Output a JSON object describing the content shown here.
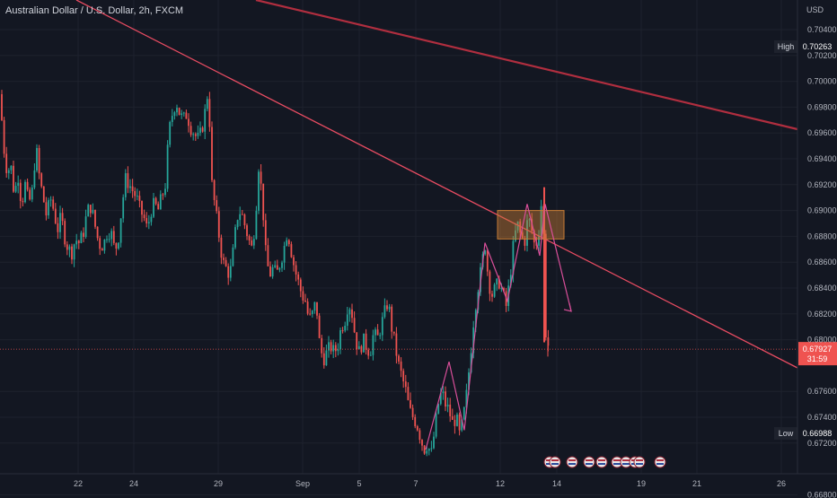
{
  "header": {
    "title": "Australian Dollar / U.S. Dollar, 2h, FXCM",
    "currency": "USD"
  },
  "colors": {
    "up": "#26a69a",
    "down": "#ef5350",
    "bg": "#131722",
    "grid": "#1e222d",
    "trend": "#e84c62",
    "trend_dark": "#b02e3f",
    "zone": "#c77d35"
  },
  "chart_data": {
    "type": "candlestick",
    "x_ticks": [
      "22",
      "24",
      "29",
      "Sep",
      "5",
      "7",
      "12",
      "14",
      "19",
      "21",
      "26"
    ],
    "y_ticks": [
      "0.70400",
      "0.70200",
      "0.70000",
      "0.69800",
      "0.69600",
      "0.69400",
      "0.69200",
      "0.69000",
      "0.68800",
      "0.68600",
      "0.68400",
      "0.68200",
      "0.68000",
      "0.67600",
      "0.67400",
      "0.67200",
      "0.66800"
    ],
    "ylim": [
      0.6665,
      0.7062
    ],
    "high": {
      "label": "High",
      "value": "0.70263"
    },
    "low": {
      "label": "Low",
      "value": "0.66988"
    },
    "last": {
      "value": "0.67927",
      "countdown": "31:59"
    },
    "annotations": [
      "Trendline 1",
      "Trendline 2",
      "Resistance zone",
      "Zigzag pattern",
      "Projection arrow"
    ],
    "ohlc_path": [
      [
        0,
        0.699
      ],
      [
        4,
        0.695
      ],
      [
        8,
        0.693
      ],
      [
        12,
        0.6935
      ],
      [
        16,
        0.6912
      ],
      [
        20,
        0.6928
      ],
      [
        24,
        0.6905
      ],
      [
        28,
        0.692
      ],
      [
        32,
        0.6905
      ],
      [
        36,
        0.6915
      ],
      [
        40,
        0.695
      ],
      [
        44,
        0.6925
      ],
      [
        48,
        0.691
      ],
      [
        52,
        0.6895
      ],
      [
        56,
        0.691
      ],
      [
        60,
        0.69
      ],
      [
        64,
        0.6885
      ],
      [
        68,
        0.6895
      ],
      [
        72,
        0.688
      ],
      [
        76,
        0.687
      ],
      [
        80,
        0.6868
      ],
      [
        84,
        0.6878
      ],
      [
        88,
        0.6875
      ],
      [
        92,
        0.688
      ],
      [
        96,
        0.6895
      ],
      [
        100,
        0.6905
      ],
      [
        104,
        0.6895
      ],
      [
        108,
        0.688
      ],
      [
        112,
        0.6872
      ],
      [
        116,
        0.6875
      ],
      [
        120,
        0.6885
      ],
      [
        124,
        0.6882
      ],
      [
        128,
        0.6868
      ],
      [
        132,
        0.688
      ],
      [
        136,
        0.6905
      ],
      [
        140,
        0.6925
      ],
      [
        144,
        0.692
      ],
      [
        148,
        0.6915
      ],
      [
        152,
        0.691
      ],
      [
        156,
        0.69
      ],
      [
        160,
        0.6895
      ],
      [
        164,
        0.6885
      ],
      [
        168,
        0.69
      ],
      [
        172,
        0.6905
      ],
      [
        176,
        0.69
      ],
      [
        180,
        0.691
      ],
      [
        184,
        0.692
      ],
      [
        188,
        0.696
      ],
      [
        192,
        0.6975
      ],
      [
        196,
        0.6985
      ],
      [
        200,
        0.6975
      ],
      [
        204,
        0.697
      ],
      [
        208,
        0.6975
      ],
      [
        212,
        0.6965
      ],
      [
        216,
        0.696
      ],
      [
        220,
        0.6955
      ],
      [
        224,
        0.696
      ],
      [
        228,
        0.6975
      ],
      [
        232,
        0.6995
      ],
      [
        236,
        0.692
      ],
      [
        240,
        0.69
      ],
      [
        244,
        0.688
      ],
      [
        248,
        0.686
      ],
      [
        252,
        0.6855
      ],
      [
        256,
        0.685
      ],
      [
        260,
        0.687
      ],
      [
        264,
        0.6895
      ],
      [
        268,
        0.69
      ],
      [
        272,
        0.689
      ],
      [
        276,
        0.688
      ],
      [
        280,
        0.687
      ],
      [
        284,
        0.689
      ],
      [
        288,
        0.6935
      ],
      [
        292,
        0.691
      ],
      [
        296,
        0.6865
      ],
      [
        300,
        0.685
      ],
      [
        304,
        0.6855
      ],
      [
        308,
        0.685
      ],
      [
        312,
        0.686
      ],
      [
        316,
        0.687
      ],
      [
        320,
        0.6885
      ],
      [
        324,
        0.687
      ],
      [
        328,
        0.6855
      ],
      [
        332,
        0.6845
      ],
      [
        336,
        0.6835
      ],
      [
        340,
        0.683
      ],
      [
        344,
        0.6815
      ],
      [
        348,
        0.682
      ],
      [
        352,
        0.683
      ],
      [
        356,
        0.6795
      ],
      [
        360,
        0.6785
      ],
      [
        364,
        0.679
      ],
      [
        368,
        0.6795
      ],
      [
        372,
        0.679
      ],
      [
        376,
        0.6795
      ],
      [
        380,
        0.681
      ],
      [
        384,
        0.6815
      ],
      [
        388,
        0.683
      ],
      [
        392,
        0.682
      ],
      [
        396,
        0.68
      ],
      [
        400,
        0.679
      ],
      [
        404,
        0.68
      ],
      [
        408,
        0.6795
      ],
      [
        412,
        0.679
      ],
      [
        416,
        0.6805
      ],
      [
        420,
        0.68
      ],
      [
        424,
        0.681
      ],
      [
        428,
        0.682
      ],
      [
        432,
        0.683
      ],
      [
        436,
        0.681
      ],
      [
        440,
        0.6795
      ],
      [
        444,
        0.678
      ],
      [
        448,
        0.677
      ],
      [
        452,
        0.676
      ],
      [
        456,
        0.6745
      ],
      [
        460,
        0.674
      ],
      [
        464,
        0.6735
      ],
      [
        468,
        0.6725
      ],
      [
        472,
        0.6715
      ],
      [
        476,
        0.672
      ],
      [
        480,
        0.671
      ],
      [
        484,
        0.673
      ],
      [
        488,
        0.675
      ],
      [
        492,
        0.676
      ],
      [
        496,
        0.675
      ],
      [
        500,
        0.6745
      ],
      [
        504,
        0.6735
      ],
      [
        508,
        0.674
      ],
      [
        512,
        0.6725
      ],
      [
        516,
        0.674
      ],
      [
        520,
        0.676
      ],
      [
        524,
        0.679
      ],
      [
        528,
        0.682
      ],
      [
        532,
        0.684
      ],
      [
        536,
        0.6855
      ],
      [
        540,
        0.6875
      ],
      [
        544,
        0.6845
      ],
      [
        548,
        0.6835
      ],
      [
        552,
        0.684
      ],
      [
        556,
        0.6845
      ],
      [
        560,
        0.6835
      ],
      [
        564,
        0.6825
      ],
      [
        568,
        0.685
      ],
      [
        572,
        0.6875
      ],
      [
        576,
        0.689
      ],
      [
        580,
        0.688
      ],
      [
        584,
        0.6875
      ],
      [
        588,
        0.6895
      ],
      [
        592,
        0.6885
      ],
      [
        596,
        0.687
      ],
      [
        600,
        0.6885
      ],
      [
        604,
        0.6915
      ],
      [
        608,
        0.68
      ],
      [
        612,
        0.6793
      ]
    ]
  }
}
